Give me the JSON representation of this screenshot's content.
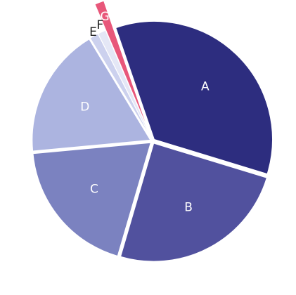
{
  "chart_data": {
    "type": "pie",
    "title": "",
    "slices": [
      {
        "label": "A",
        "value": 35.0,
        "color": "#2d2d7f",
        "label_color": "#ffffff"
      },
      {
        "label": "B",
        "value": 24.8,
        "color": "#51519e",
        "label_color": "#ffffff"
      },
      {
        "label": "C",
        "value": 19.0,
        "color": "#7b82c0",
        "label_color": "#ffffff"
      },
      {
        "label": "D",
        "value": 17.8,
        "color": "#acb4e0",
        "label_color": "#ffffff"
      },
      {
        "label": "E",
        "value": 1.2,
        "color": "#ccd1ee",
        "label_color": "#222222"
      },
      {
        "label": "F",
        "value": 1.1,
        "color": "#e4e7f6",
        "label_color": "#222222"
      },
      {
        "label": "G",
        "value": 1.1,
        "color": "#e8577a",
        "label_color": "#ffffff"
      }
    ],
    "start_angle_deg": 341,
    "direction": "clockwise",
    "exploded": [
      "G"
    ],
    "legend": "none"
  }
}
